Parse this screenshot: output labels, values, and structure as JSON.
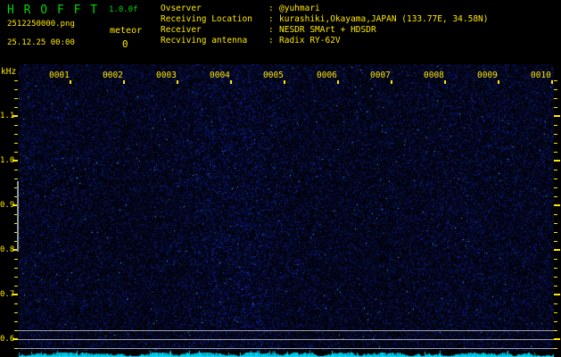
{
  "app": {
    "title": "H R O F F T",
    "version": "1.0.0f",
    "filename": "2512250000.png",
    "meteor_label": "meteor",
    "meteor_count": "0",
    "datetime": "25.12.25 00:00"
  },
  "info": {
    "rows": [
      {
        "label": "Ovserver",
        "colon": ":",
        "value": "@yuhmari"
      },
      {
        "label": "Receiving Location",
        "colon": ":",
        "value": "kurashiki,Okayama,JAPAN (133.77E, 34.58N)"
      },
      {
        "label": "Receiver",
        "colon": ":",
        "value": "NESDR SMArt + HDSDR"
      },
      {
        "label": "Recviving antenna",
        "colon": ":",
        "value": "Radix RY-62V"
      }
    ]
  },
  "spectrogram": {
    "freq_unit": "kHz",
    "freq_labels": [
      "1.1",
      "1.0",
      "0.9",
      "0.8",
      "0.7",
      "0.6"
    ],
    "time_labels": [
      "0001",
      "0002",
      "0003",
      "0004",
      "0005",
      "0006",
      "0007",
      "0008",
      "0009",
      "0010"
    ],
    "meteor_band_marker_khz": [
      "0.95",
      "0.80"
    ],
    "carrier_lines_khz": [
      "0.62",
      "0.60",
      "0.58"
    ],
    "colors": {
      "title_green": "#00d800",
      "text_yellow": "#ffe800",
      "noise_blue": "#1822c8",
      "carrier_line_gray": "#9aa0a8",
      "amplitude_cyan": "#00dcff",
      "background": "#000000"
    }
  }
}
